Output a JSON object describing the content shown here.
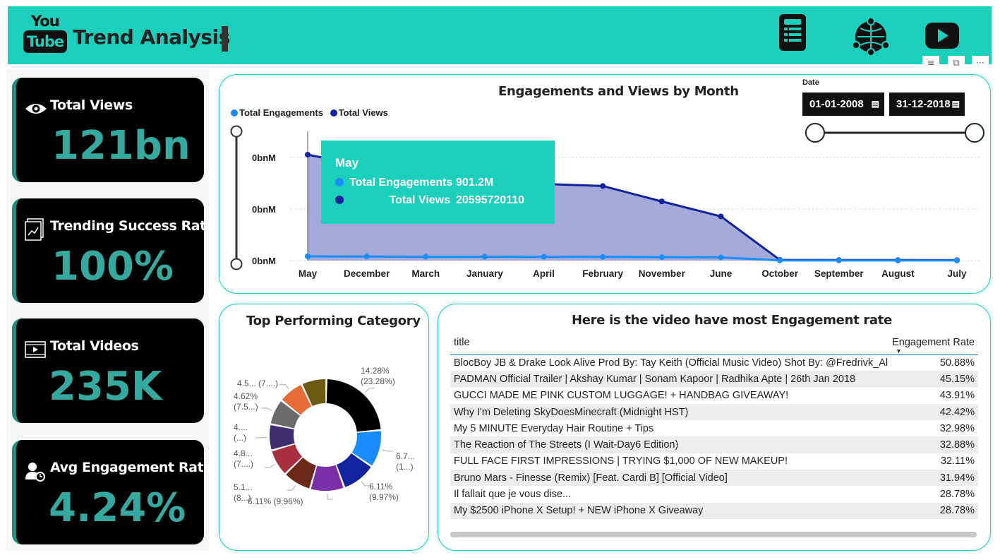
{
  "header": {
    "logo_top": "You",
    "logo_bottom": "Tube",
    "title": "Trend Analysis",
    "icons": [
      "document-icon",
      "globe-network-icon",
      "youtube-play-icon"
    ]
  },
  "kpis": [
    {
      "label": "Total Views",
      "value": "121bn",
      "icon": "eye-icon"
    },
    {
      "label": "Trending Success Rate",
      "value": "100%",
      "icon": "trend-chart-icon"
    },
    {
      "label": "Total Videos",
      "value": "235K",
      "icon": "video-icon"
    },
    {
      "label": "Avg Engagement Rate",
      "value": "4.24%",
      "icon": "user-engagement-icon"
    }
  ],
  "visual_tools": [
    "filter-icon",
    "focus-mode-icon",
    "more-options-icon"
  ],
  "line_chart_panel": {
    "title": "Engagements and Views by Month",
    "legend": [
      {
        "label": "Total Engagements",
        "color": "#1a8cff"
      },
      {
        "label": "Total Views",
        "color": "#12239e"
      }
    ],
    "date_slicer": {
      "label": "Date",
      "start": "01-01-2008",
      "end": "31-12-2018"
    },
    "tooltip": {
      "month": "May",
      "rows": [
        {
          "label": "Total Engagements",
          "value": "901.2M",
          "color": "#1a8cff"
        },
        {
          "label": "Total Views",
          "value": "20595720110",
          "color": "#12239e"
        }
      ]
    }
  },
  "pie_panel": {
    "title": "Top Performing Category"
  },
  "table_panel": {
    "title": "Here is the video have most Engagement rate",
    "columns": [
      "title",
      "Engagement Rate"
    ],
    "rows": [
      [
        "BlocBoy JB & Drake Look Alive Prod By: Tay Keith (Official Music Video) Shot By: @Fredrivk_Ali",
        "50.88%"
      ],
      [
        "PADMAN Official Trailer | Akshay Kumar | Sonam Kapoor | Radhika Apte | 26th Jan 2018",
        "45.15%"
      ],
      [
        "GUCCI MADE ME PINK CUSTOM LUGGAGE! + HANDBAG GIVEAWAY!",
        "43.91%"
      ],
      [
        "Why I'm Deleting SkyDoesMinecraft (Midnight HST)",
        "42.42%"
      ],
      [
        "My 5 MINUTE Everyday Hair Routine + Tips",
        "32.98%"
      ],
      [
        "The Reaction of The Streets (I Wait-Day6 Edition)",
        "32.88%"
      ],
      [
        "FULL FACE FIRST IMPRESSIONS | TRYING $1,000 OF NEW MAKEUP!",
        "32.11%"
      ],
      [
        "Bruno Mars - Finesse (Remix) [Feat. Cardi B] [Official Video]",
        "31.94%"
      ],
      [
        "Il fallait que je vous dise...",
        "28.78%"
      ],
      [
        "My $2500 iPhone X Setup! + NEW iPhone X Giveaway",
        "28.78%"
      ]
    ]
  },
  "chart_data": [
    {
      "type": "area",
      "title": "Engagements and Views by Month",
      "categories": [
        "May",
        "December",
        "March",
        "January",
        "April",
        "February",
        "November",
        "June",
        "October",
        "September",
        "August",
        "July"
      ],
      "y_tick_labels": [
        "0bnM",
        "0bnM",
        "0bnM"
      ],
      "series": [
        {
          "name": "Total Engagements",
          "color": "#1a8cff",
          "values": [
            901.2,
            860,
            830,
            820,
            815,
            790,
            740,
            680,
            30,
            25,
            20,
            18
          ]
        },
        {
          "name": "Total Views",
          "color": "#12239e",
          "values": [
            20595720110,
            18300000000,
            17000000000,
            15800000000,
            14900000000,
            14500000000,
            11500000000,
            8600000000,
            130000000,
            110000000,
            100000000,
            90000000
          ]
        }
      ],
      "grid": true,
      "legend_position": "top-left"
    },
    {
      "type": "pie",
      "title": "Top Performing Category",
      "slices": [
        {
          "label": "14.28%\n(23.28%)",
          "value": 23.28,
          "color": "#000000"
        },
        {
          "label": "6.7...\n(1...)",
          "value": 10.9,
          "color": "#1a8cff"
        },
        {
          "label": "6.11%\n(9.97%)",
          "value": 9.97,
          "color": "#12239e"
        },
        {
          "label": "6.11% (9.96%)",
          "value": 9.96,
          "color": "#7b2fa8"
        },
        {
          "label": "5.1...\n(8...)",
          "value": 8.3,
          "color": "#6b2a1a"
        },
        {
          "label": "4.8...\n(7....)",
          "value": 7.8,
          "color": "#a82f3e"
        },
        {
          "label": "4....\n(...)",
          "value": 7.6,
          "color": "#3d2d6d"
        },
        {
          "label": "4.62%\n(7.5...)",
          "value": 7.5,
          "color": "#6b6b6b"
        },
        {
          "label": "4.5... (7....)",
          "value": 7.4,
          "color": "#e66c37"
        },
        {
          "label": "",
          "value": 7.3,
          "color": "#6b5a12"
        }
      ]
    }
  ]
}
